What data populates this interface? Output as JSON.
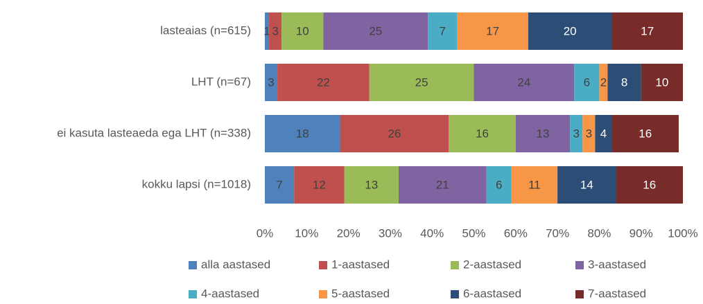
{
  "chart_data": {
    "type": "stacked-barh",
    "categories": [
      "lasteaias (n=615)",
      "LHT (n=67)",
      "ei kasuta lasteaeda ega LHT (n=338)",
      "kokku lapsi (n=1018)"
    ],
    "series": [
      {
        "name": "alla aastased",
        "color": "#4f81bd",
        "values": [
          1,
          3,
          18,
          7
        ]
      },
      {
        "name": "1-aastased",
        "color": "#c0504d",
        "values": [
          3,
          22,
          26,
          12
        ]
      },
      {
        "name": "2-aastased",
        "color": "#9bbb59",
        "values": [
          10,
          25,
          16,
          13
        ]
      },
      {
        "name": "3-aastased",
        "color": "#8064a2",
        "values": [
          25,
          24,
          13,
          21
        ]
      },
      {
        "name": "4-aastased",
        "color": "#4bacc6",
        "values": [
          7,
          6,
          3,
          6
        ]
      },
      {
        "name": "5-aastased",
        "color": "#f79646",
        "values": [
          17,
          2,
          3,
          11
        ]
      },
      {
        "name": "6-aastased",
        "color": "#2c4d75",
        "values": [
          20,
          8,
          4,
          14
        ]
      },
      {
        "name": "7-aastased",
        "color": "#772c2a",
        "values": [
          17,
          10,
          16,
          16
        ]
      }
    ],
    "xlim": [
      0,
      100
    ],
    "xticks": [
      {
        "value": 0,
        "label": "0%"
      },
      {
        "value": 10,
        "label": "10%"
      },
      {
        "value": 20,
        "label": "20%"
      },
      {
        "value": 30,
        "label": "30%"
      },
      {
        "value": 40,
        "label": "40%"
      },
      {
        "value": 50,
        "label": "50%"
      },
      {
        "value": 60,
        "label": "60%"
      },
      {
        "value": 70,
        "label": "70%"
      },
      {
        "value": 80,
        "label": "80%"
      },
      {
        "value": 90,
        "label": "90%"
      },
      {
        "value": 100,
        "label": "100%"
      }
    ],
    "grid": false,
    "legend": "bottom"
  }
}
